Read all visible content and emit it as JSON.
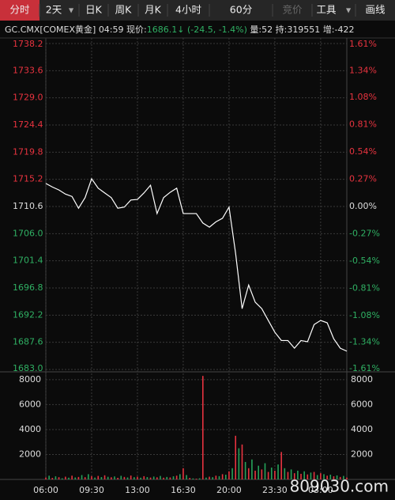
{
  "toolbar": {
    "tabs": [
      "分时",
      "2天",
      "日K",
      "周K",
      "月K",
      "4小时",
      "60分",
      "竞价",
      "工具",
      "画线"
    ]
  },
  "info": {
    "symbol": "GC.CMX[COMEX黄金]",
    "time": "04:59",
    "price_label": "现价:",
    "price": "1686.1",
    "change": "(-24.5, -1.4%)",
    "volume": "量:52",
    "open_interest": "持:319551",
    "increase": "增:-422"
  },
  "watermark": "809030.com",
  "chart_data": [
    {
      "type": "line",
      "x": [
        0,
        0.5,
        1,
        1.5,
        2,
        2.5,
        3,
        3.5,
        4,
        4.5,
        5,
        5.5,
        6,
        6.5,
        7,
        7.5,
        8,
        8.5,
        9,
        9.5,
        10,
        10.5,
        11,
        11.5,
        12,
        12.5,
        13,
        13.5,
        14,
        14.5,
        15,
        15.5,
        16,
        16.5,
        17,
        17.5,
        18,
        18.5,
        19,
        19.5,
        20,
        20.5,
        21,
        21.5,
        22,
        22.5,
        23
      ],
      "series": [
        {
          "color": "#ffffff",
          "values": [
            1714.5,
            1713.9,
            1713.4,
            1712.7,
            1712.3,
            1710.3,
            1712.1,
            1715.3,
            1713.7,
            1712.9,
            1712.1,
            1710.3,
            1710.5,
            1711.7,
            1711.8,
            1712.9,
            1714.2,
            1709.4,
            1712.1,
            1713.0,
            1713.7,
            1709.4,
            1709.4,
            1709.4,
            1707.8,
            1707.1,
            1708.0,
            1708.6,
            1710.5,
            1702.7,
            1693.3,
            1697.3,
            1694.4,
            1693.3,
            1691.3,
            1689.3,
            1687.9,
            1687.9,
            1686.6,
            1687.9,
            1687.7,
            1690.6,
            1691.3,
            1690.9,
            1688.2,
            1686.6,
            1686.1
          ]
        }
      ],
      "xlim": [
        0,
        23
      ],
      "ylim": [
        1683.0,
        1738.2
      ],
      "yticks": [
        1738.2,
        1733.6,
        {
          "value": 1729,
          "label": "1729.0"
        },
        1724.4,
        1719.8,
        1715.2,
        1710.6,
        {
          "value": 1706,
          "label": "1706.0"
        },
        1701.4,
        1696.8,
        1692.2,
        1687.6,
        {
          "value": 1683,
          "label": "1683.0"
        }
      ],
      "y2lim": [
        -1.61,
        1.61
      ],
      "y2ticks": [
        {
          "value": 1.61,
          "label": "1.61%"
        },
        {
          "value": 1.34,
          "label": "1.34%"
        },
        {
          "value": 1.08,
          "label": "1.08%"
        },
        {
          "value": 0.81,
          "label": "0.81%"
        },
        {
          "value": 0.54,
          "label": "0.54%"
        },
        {
          "value": 0.27,
          "label": "0.27%"
        },
        {
          "value": 0,
          "label": "0.00%"
        },
        {
          "value": -0.27,
          "label": "-0.27%"
        },
        {
          "value": -0.54,
          "label": "-0.54%"
        },
        {
          "value": -0.81,
          "label": "-0.81%"
        },
        {
          "value": -1.08,
          "label": "-1.08%"
        },
        {
          "value": -1.34,
          "label": "-1.34%"
        },
        {
          "value": -1.61,
          "label": "-1.61%"
        }
      ],
      "grid": true
    },
    {
      "type": "bar",
      "x": [
        0,
        0.25,
        0.5,
        0.75,
        1,
        1.25,
        1.5,
        1.75,
        2,
        2.25,
        2.5,
        2.75,
        3,
        3.25,
        3.5,
        3.75,
        4,
        4.25,
        4.5,
        4.75,
        5,
        5.25,
        5.5,
        5.75,
        6,
        6.25,
        6.5,
        6.75,
        7,
        7.25,
        7.5,
        7.75,
        8,
        8.25,
        8.5,
        8.75,
        9,
        9.25,
        9.5,
        9.75,
        10,
        10.25,
        10.5,
        10.75,
        11,
        11.25,
        11.5,
        11.75,
        12,
        12.25,
        12.5,
        12.75,
        13,
        13.25,
        13.5,
        13.75,
        14,
        14.25,
        14.5,
        14.75,
        15,
        15.25,
        15.5,
        15.75,
        16,
        16.25,
        16.5,
        16.75,
        17,
        17.25,
        17.5,
        17.75,
        18,
        18.25,
        18.5,
        18.75,
        19,
        19.25,
        19.5,
        19.75,
        20,
        20.25,
        20.5,
        20.75,
        21,
        21.25,
        21.5,
        21.75,
        22,
        22.25,
        22.5,
        22.75,
        23
      ],
      "values": [
        150,
        300,
        120,
        250,
        180,
        90,
        220,
        140,
        300,
        160,
        200,
        350,
        180,
        420,
        260,
        150,
        280,
        190,
        330,
        210,
        170,
        240,
        130,
        290,
        200,
        160,
        310,
        180,
        220,
        140,
        260,
        190,
        150,
        230,
        170,
        280,
        140,
        200,
        160,
        250,
        300,
        420,
        900,
        350,
        120,
        80,
        60,
        90,
        8300,
        150,
        220,
        180,
        300,
        260,
        420,
        380,
        650,
        900,
        3500,
        2500,
        2800,
        1400,
        900,
        1600,
        700,
        1100,
        800,
        1300,
        600,
        950,
        700,
        1200,
        2200,
        900,
        600,
        800,
        500,
        700,
        450,
        650,
        400,
        550,
        600,
        350,
        500,
        420,
        300,
        380,
        250,
        320,
        200,
        280,
        150
      ],
      "colors": [
        "#e8333f",
        "#25a35a"
      ],
      "xlim": [
        0,
        23
      ],
      "xticks": [
        {
          "value": 0,
          "label": "06:00"
        },
        {
          "value": 3.5,
          "label": "09:30"
        },
        {
          "value": 7,
          "label": "13:00"
        },
        {
          "value": 10.5,
          "label": "16:30"
        },
        {
          "value": 14,
          "label": "20:00"
        },
        {
          "value": 17.5,
          "label": "23:30"
        },
        {
          "value": 21,
          "label": "03:00"
        }
      ],
      "ylim": [
        0,
        8500
      ],
      "yticks": [
        2000,
        4000,
        6000,
        8000
      ],
      "grid": true
    }
  ]
}
